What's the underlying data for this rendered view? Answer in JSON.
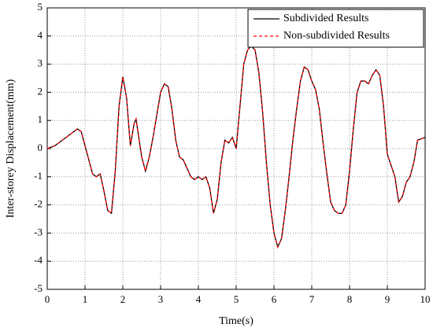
{
  "chart_data": {
    "type": "line",
    "xlabel": "Time(s)",
    "ylabel": "Inter-storey Displacement(mm)",
    "x": [
      0,
      0.2,
      0.4,
      0.6,
      0.8,
      0.9,
      1.0,
      1.1,
      1.2,
      1.3,
      1.4,
      1.5,
      1.6,
      1.7,
      1.8,
      1.9,
      2.0,
      2.1,
      2.2,
      2.3,
      2.35,
      2.4,
      2.5,
      2.6,
      2.7,
      2.8,
      2.9,
      3.0,
      3.1,
      3.2,
      3.3,
      3.4,
      3.5,
      3.6,
      3.7,
      3.8,
      3.9,
      4.0,
      4.1,
      4.2,
      4.3,
      4.4,
      4.5,
      4.6,
      4.7,
      4.8,
      4.9,
      5.0,
      5.1,
      5.2,
      5.3,
      5.4,
      5.5,
      5.6,
      5.7,
      5.8,
      5.9,
      6.0,
      6.1,
      6.2,
      6.3,
      6.4,
      6.5,
      6.6,
      6.7,
      6.8,
      6.9,
      7.0,
      7.1,
      7.2,
      7.3,
      7.4,
      7.5,
      7.6,
      7.7,
      7.8,
      7.9,
      8.0,
      8.1,
      8.2,
      8.3,
      8.4,
      8.5,
      8.6,
      8.7,
      8.8,
      8.9,
      9.0,
      9.1,
      9.2,
      9.3,
      9.4,
      9.5,
      9.6,
      9.7,
      9.8,
      9.9,
      10.0
    ],
    "series": [
      {
        "name": "Subdivided Results",
        "color": "#000000",
        "dashed": false,
        "values": [
          0,
          0.1,
          0.3,
          0.5,
          0.7,
          0.6,
          0.1,
          -0.4,
          -0.9,
          -1.0,
          -0.9,
          -1.5,
          -2.2,
          -2.3,
          -0.8,
          1.5,
          2.55,
          1.8,
          0.1,
          0.9,
          1.05,
          0.6,
          -0.3,
          -0.8,
          -0.3,
          0.4,
          1.2,
          2.0,
          2.3,
          2.2,
          1.4,
          0.3,
          -0.3,
          -0.4,
          -0.7,
          -1.0,
          -1.1,
          -1.0,
          -1.1,
          -1.0,
          -1.4,
          -2.3,
          -1.8,
          -0.5,
          0.3,
          0.2,
          0.4,
          0.0,
          1.5,
          3.0,
          3.5,
          3.65,
          3.5,
          2.7,
          1.3,
          -0.5,
          -2.0,
          -3.0,
          -3.5,
          -3.2,
          -2.2,
          -1.0,
          0.3,
          1.4,
          2.4,
          2.9,
          2.8,
          2.4,
          2.1,
          1.4,
          0.2,
          -0.9,
          -1.9,
          -2.2,
          -2.3,
          -2.3,
          -2.0,
          -0.8,
          0.7,
          2.0,
          2.4,
          2.4,
          2.3,
          2.6,
          2.8,
          2.6,
          1.5,
          -0.2,
          -0.6,
          -1.0,
          -1.9,
          -1.7,
          -1.2,
          -1.0,
          -0.5,
          0.3,
          0.35,
          0.4
        ]
      },
      {
        "name": "Non-subdivided Results",
        "color": "#ff0000",
        "dashed": true,
        "values": [
          0,
          0.1,
          0.3,
          0.5,
          0.7,
          0.6,
          0.1,
          -0.4,
          -0.9,
          -1.0,
          -0.9,
          -1.5,
          -2.2,
          -2.3,
          -0.8,
          1.5,
          2.55,
          1.8,
          0.1,
          0.9,
          1.05,
          0.6,
          -0.3,
          -0.8,
          -0.3,
          0.4,
          1.2,
          2.0,
          2.3,
          2.2,
          1.4,
          0.3,
          -0.3,
          -0.4,
          -0.7,
          -1.0,
          -1.1,
          -1.0,
          -1.1,
          -1.0,
          -1.4,
          -2.3,
          -1.8,
          -0.5,
          0.3,
          0.2,
          0.4,
          0.0,
          1.5,
          3.0,
          3.5,
          3.65,
          3.5,
          2.7,
          1.3,
          -0.5,
          -2.0,
          -3.0,
          -3.5,
          -3.2,
          -2.2,
          -1.0,
          0.3,
          1.4,
          2.4,
          2.9,
          2.8,
          2.4,
          2.1,
          1.4,
          0.2,
          -0.9,
          -1.9,
          -2.2,
          -2.3,
          -2.3,
          -2.0,
          -0.8,
          0.7,
          2.0,
          2.4,
          2.4,
          2.3,
          2.6,
          2.8,
          2.6,
          1.5,
          -0.2,
          -0.6,
          -1.0,
          -1.9,
          -1.7,
          -1.2,
          -1.0,
          -0.5,
          0.3,
          0.35,
          0.4
        ]
      }
    ],
    "xlim": [
      0,
      10
    ],
    "xticks": [
      0,
      1,
      2,
      3,
      4,
      5,
      6,
      7,
      8,
      9,
      10
    ],
    "ylim": [
      -5,
      5
    ],
    "yticks": [
      -5,
      -4,
      -3,
      -2,
      -1,
      0,
      1,
      2,
      3,
      4,
      5
    ],
    "grid": true,
    "legend": "upper right"
  }
}
